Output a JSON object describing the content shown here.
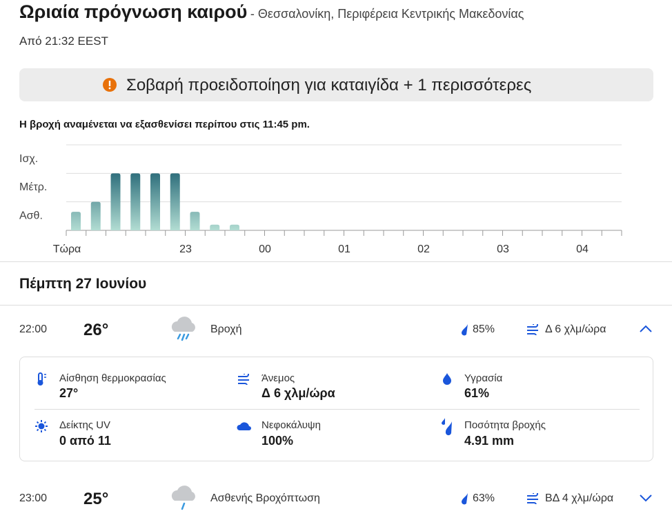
{
  "header": {
    "title": "Ωριαία πρόγνωση καιρού",
    "location": "- Θεσσαλονίκη, Περιφέρεια Κεντρικής Μακεδονίας",
    "updated": "Από 21:32 EEST"
  },
  "alert": "Σοβαρή προειδοποίηση για καταιγίδα + 1 περισσότερες",
  "rain_chart": {
    "type": "bar",
    "summary": "Η βροχή αναμένεται να εξασθενίσει περίπου στις 11:45 pm.",
    "level_labels": [
      "Ισχ.",
      "Μέτρ.",
      "Ασθ."
    ],
    "ylim": [
      0,
      3
    ],
    "yticks": [
      0,
      1,
      2,
      3
    ],
    "values": [
      0.65,
      1,
      2,
      2,
      2,
      2,
      0.65,
      0.2,
      0.2
    ],
    "x_labels": [
      "Τώρα",
      "23",
      "00",
      "01",
      "02",
      "03",
      "04"
    ]
  },
  "day": "Πέμπτη 27 Ιουνίου",
  "hours": [
    {
      "time": "22:00",
      "temp": "26°",
      "condition": "Βροχή",
      "rain_chance": "85%",
      "wind": "Δ 6 χλμ/ώρα"
    },
    {
      "time": "23:00",
      "temp": "25°",
      "condition": "Ασθενής Βροχόπτωση",
      "rain_chance": "63%",
      "wind": "ΒΔ 4 χλμ/ώρα"
    }
  ],
  "details": [
    {
      "label": "Αίσθηση θερμοκρασίας",
      "value": "27°"
    },
    {
      "label": "Άνεμος",
      "value": "Δ 6 χλμ/ώρα"
    },
    {
      "label": "Υγρασία",
      "value": "61%"
    },
    {
      "label": "Δείκτης UV",
      "value": "0 από 11"
    },
    {
      "label": "Νεφοκάλυψη",
      "value": "100%"
    },
    {
      "label": "Ποσότητα βροχής",
      "value": "4.91 mm"
    }
  ]
}
